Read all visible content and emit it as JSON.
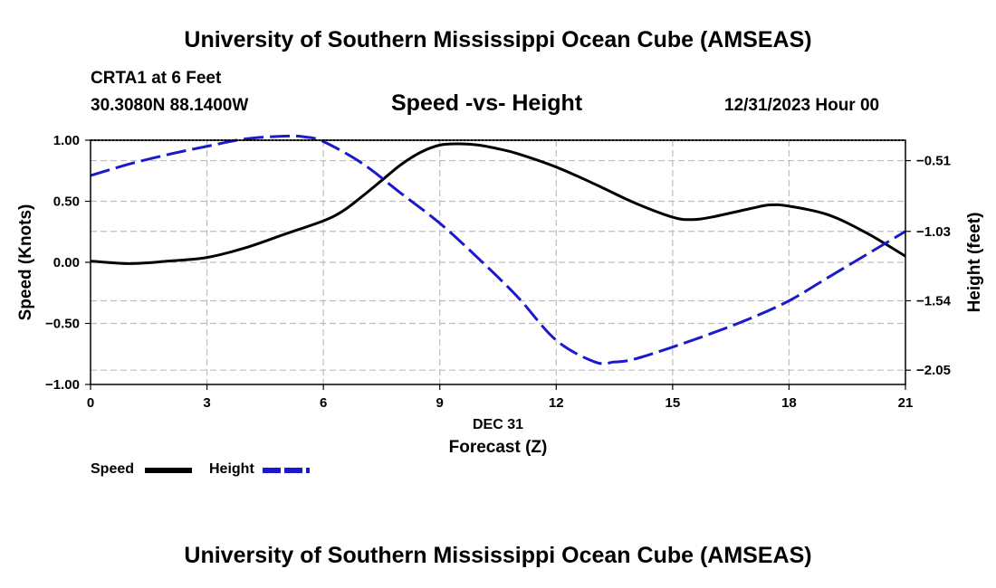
{
  "header": {
    "title": "University of Southern Mississippi Ocean Cube (AMSEAS)",
    "station_line": "CRTA1 at 6 Feet",
    "coords_line": "30.3080N  88.1400W",
    "plot_title": "Speed -vs- Height",
    "datetime": "12/31/2023 Hour 00"
  },
  "footer": {
    "title": "University of Southern Mississippi Ocean Cube (AMSEAS)"
  },
  "legend": {
    "items": [
      {
        "label": "Speed",
        "color": "#000000",
        "style": "solid"
      },
      {
        "label": "Height",
        "color": "#1a1acc",
        "style": "dashed"
      }
    ]
  },
  "chart_data": {
    "type": "line",
    "title": "Speed -vs- Height",
    "xlabel": "Forecast (Z)",
    "x_sublabel": "DEC 31",
    "xlim": [
      0,
      21
    ],
    "xticks": [
      0,
      3,
      6,
      9,
      12,
      15,
      18,
      21
    ],
    "xtick_labels": [
      "0",
      "3",
      "6",
      "9",
      "12",
      "15",
      "18",
      "21"
    ],
    "left_axis": {
      "label": "Speed (Knots)",
      "range": [
        -1.0,
        1.0
      ],
      "ticks": [
        1.0,
        0.5,
        0.0,
        -0.5,
        -1.0
      ],
      "tick_labels": [
        "1.00",
        "0.50",
        "0.00",
        "−0.50",
        "−1.00"
      ]
    },
    "right_axis": {
      "label": "Height (feet)",
      "range": [
        -2.155,
        -0.36
      ],
      "ticks": [
        -0.51,
        -1.03,
        -1.54,
        -2.05
      ],
      "tick_labels": [
        "−0.51",
        "−1.03",
        "−1.54",
        "−2.05"
      ]
    },
    "grid": true,
    "series": [
      {
        "name": "Speed",
        "axis": "left",
        "color": "#000000",
        "dashed": false,
        "x": [
          0,
          1,
          2,
          3,
          4,
          5,
          6,
          6.5,
          7,
          7.5,
          8,
          8.5,
          9,
          9.5,
          10,
          10.5,
          11,
          12,
          13,
          14,
          15,
          15.5,
          16,
          17,
          17.5,
          18,
          19,
          20,
          21
        ],
        "y": [
          0.01,
          -0.01,
          0.01,
          0.04,
          0.12,
          0.23,
          0.34,
          0.42,
          0.54,
          0.67,
          0.8,
          0.9,
          0.96,
          0.97,
          0.96,
          0.93,
          0.89,
          0.78,
          0.64,
          0.49,
          0.37,
          0.35,
          0.37,
          0.44,
          0.47,
          0.46,
          0.39,
          0.24,
          0.05
        ]
      },
      {
        "name": "Height",
        "axis": "right",
        "color": "#1a1acc",
        "dashed": true,
        "x": [
          0,
          1,
          2,
          3,
          4,
          5,
          5.5,
          6,
          7,
          8,
          9,
          10,
          11,
          12,
          13,
          13.5,
          14,
          15,
          16,
          17,
          18,
          19,
          20,
          21
        ],
        "y": [
          -0.62,
          -0.535,
          -0.465,
          -0.405,
          -0.35,
          -0.33,
          -0.335,
          -0.37,
          -0.53,
          -0.75,
          -0.97,
          -1.23,
          -1.51,
          -1.83,
          -1.99,
          -1.99,
          -1.97,
          -1.88,
          -1.78,
          -1.67,
          -1.54,
          -1.37,
          -1.2,
          -1.03
        ]
      }
    ]
  }
}
